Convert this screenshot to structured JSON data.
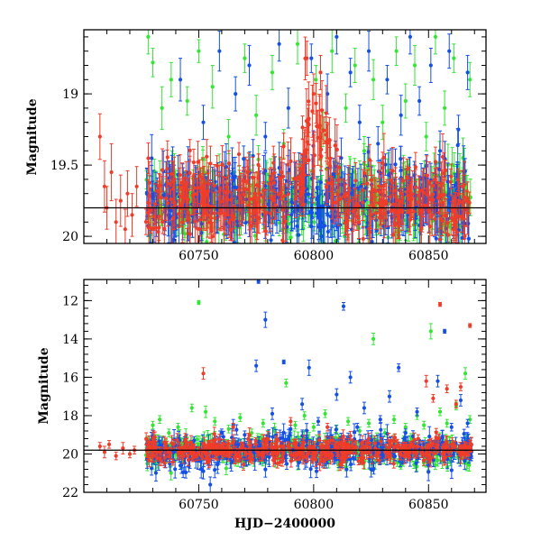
{
  "figure": {
    "background": "#ffffff",
    "series_colors": {
      "green": "#33e633",
      "blue": "#1450e6",
      "red": "#f03c28"
    }
  },
  "chart_data": [
    {
      "type": "scatter",
      "panel": "top",
      "title": "",
      "xlabel": "",
      "ylabel": "Magnitude",
      "xlim": [
        60700,
        60875
      ],
      "ylim": [
        20.05,
        18.55
      ],
      "y_inverted": true,
      "x_ticks": [
        60750,
        60800,
        60850
      ],
      "x_tick_labels": [
        "60750",
        "60800",
        "60850"
      ],
      "y_ticks": [
        19,
        19.5,
        20
      ],
      "y_tick_labels": [
        "19",
        "19.5",
        "20"
      ],
      "reference_line": {
        "y": 19.8,
        "color": "#000000"
      },
      "grid": false,
      "legend": "none",
      "series": [
        {
          "color": "green",
          "dense_segments": [
            [
              60727,
              60869,
              19.75,
              0.12
            ]
          ],
          "scatter_points": [
            [
              60728,
              18.6,
              0.12
            ],
            [
              60730,
              18.78,
              0.1
            ],
            [
              60734,
              19.1,
              0.15
            ],
            [
              60738,
              18.9,
              0.12
            ],
            [
              60745,
              19.05,
              0.1
            ],
            [
              60750,
              18.7,
              0.08
            ],
            [
              60756,
              18.95,
              0.15
            ],
            [
              60763,
              19.3,
              0.12
            ],
            [
              60770,
              18.75,
              0.1
            ],
            [
              60775,
              19.15,
              0.14
            ],
            [
              60782,
              18.85,
              0.12
            ],
            [
              60787,
              19.35,
              0.1
            ],
            [
              60793,
              18.65,
              0.14
            ],
            [
              60797,
              19.7,
              0.12
            ],
            [
              60801,
              18.9,
              0.1
            ],
            [
              60804,
              19.25,
              0.12
            ],
            [
              60808,
              18.7,
              0.15
            ],
            [
              60814,
              19.1,
              0.1
            ],
            [
              60818,
              18.8,
              0.12
            ],
            [
              60822,
              19.4,
              0.1
            ],
            [
              60826,
              18.9,
              0.14
            ],
            [
              60830,
              19.2,
              0.12
            ],
            [
              60836,
              18.7,
              0.1
            ],
            [
              60840,
              19.05,
              0.12
            ],
            [
              60844,
              18.8,
              0.14
            ],
            [
              60849,
              19.3,
              0.1
            ],
            [
              60853,
              18.6,
              0.12
            ],
            [
              60857,
              19.1,
              0.12
            ],
            [
              60861,
              18.75,
              0.1
            ],
            [
              60865,
              19.45,
              0.14
            ],
            [
              60868,
              18.9,
              0.12
            ]
          ]
        },
        {
          "color": "blue",
          "dense_segments": [
            [
              60727,
              60869,
              19.75,
              0.14
            ]
          ],
          "scatter_points": [
            [
              60742,
              18.9,
              0.15
            ],
            [
              60752,
              19.2,
              0.12
            ],
            [
              60759,
              18.7,
              0.14
            ],
            [
              60766,
              19.0,
              0.12
            ],
            [
              60772,
              18.8,
              0.14
            ],
            [
              60779,
              19.3,
              0.1
            ],
            [
              60785,
              18.65,
              0.12
            ],
            [
              60789,
              19.1,
              0.14
            ],
            [
              60795,
              19.55,
              0.12
            ],
            [
              60799,
              18.75,
              0.1
            ],
            [
              60803,
              19.9,
              0.12
            ],
            [
              60806,
              19.0,
              0.14
            ],
            [
              60810,
              18.6,
              0.12
            ],
            [
              60812,
              19.45,
              0.14
            ],
            [
              60816,
              18.85,
              0.1
            ],
            [
              60820,
              19.2,
              0.12
            ],
            [
              60824,
              18.7,
              0.14
            ],
            [
              60828,
              19.35,
              0.12
            ],
            [
              60832,
              18.9,
              0.1
            ],
            [
              60838,
              19.15,
              0.14
            ],
            [
              60842,
              18.6,
              0.12
            ],
            [
              60846,
              19.05,
              0.1
            ],
            [
              60851,
              18.8,
              0.12
            ],
            [
              60855,
              19.4,
              0.14
            ],
            [
              60859,
              18.7,
              0.12
            ],
            [
              60863,
              19.25,
              0.1
            ],
            [
              60867,
              18.85,
              0.12
            ]
          ]
        },
        {
          "color": "red",
          "dense_segments": [
            [
              60727,
              60745,
              19.76,
              0.13
            ],
            [
              60745,
              60790,
              19.72,
              0.14
            ],
            [
              60790,
              60796,
              19.55,
              0.15
            ],
            [
              60796,
              60806,
              19.35,
              0.18
            ],
            [
              60806,
              60812,
              19.6,
              0.15
            ],
            [
              60812,
              60869,
              19.78,
              0.13
            ]
          ],
          "scatter_points": [
            [
              60707,
              19.3,
              0.16
            ],
            [
              60709,
              19.65,
              0.18
            ],
            [
              60710,
              19.8,
              0.15
            ],
            [
              60712,
              19.55,
              0.2
            ],
            [
              60714,
              19.9,
              0.16
            ],
            [
              60716,
              19.75,
              0.18
            ],
            [
              60718,
              19.95,
              0.14
            ],
            [
              60719,
              19.7,
              0.16
            ],
            [
              60721,
              19.85,
              0.15
            ],
            [
              60723,
              19.65,
              0.14
            ],
            [
              60797,
              18.75,
              0.12
            ],
            [
              60800,
              19.0,
              0.14
            ],
            [
              60803,
              18.85,
              0.12
            ]
          ]
        }
      ]
    },
    {
      "type": "scatter",
      "panel": "bottom",
      "title": "",
      "xlabel": "HJD−2400000",
      "ylabel": "Magnitude",
      "xlim": [
        60700,
        60875
      ],
      "ylim": [
        22,
        10.9
      ],
      "y_inverted": true,
      "x_ticks": [
        60750,
        60800,
        60850
      ],
      "x_tick_labels": [
        "60750",
        "60800",
        "60850"
      ],
      "y_ticks": [
        12,
        14,
        16,
        18,
        20,
        22
      ],
      "y_tick_labels": [
        "12",
        "14",
        "16",
        "18",
        "20",
        "22"
      ],
      "reference_line": {
        "y": 19.8,
        "color": "#000000"
      },
      "grid": false,
      "legend": "none",
      "series": [
        {
          "color": "green",
          "dense_segments": [
            [
              60727,
              60869,
              19.8,
              0.35
            ]
          ],
          "scatter_points": [
            [
              60730,
              18.5,
              0.2
            ],
            [
              60733,
              18.2,
              0.2
            ],
            [
              60737,
              18.9,
              0.2
            ],
            [
              60741,
              18.6,
              0.2
            ],
            [
              60747,
              17.6,
              0.2
            ],
            [
              60750,
              12.1,
              0.1
            ],
            [
              60753,
              17.8,
              0.3
            ],
            [
              60757,
              18.3,
              0.2
            ],
            [
              60763,
              18.7,
              0.2
            ],
            [
              60768,
              18.1,
              0.2
            ],
            [
              60773,
              18.9,
              0.2
            ],
            [
              60778,
              18.4,
              0.2
            ],
            [
              60783,
              18.8,
              0.2
            ],
            [
              60788,
              16.3,
              0.2
            ],
            [
              60792,
              18.5,
              0.2
            ],
            [
              60796,
              18.0,
              0.2
            ],
            [
              60800,
              18.6,
              0.2
            ],
            [
              60805,
              17.9,
              0.2
            ],
            [
              60810,
              18.7,
              0.2
            ],
            [
              60815,
              18.3,
              0.2
            ],
            [
              60820,
              18.8,
              0.2
            ],
            [
              60824,
              18.4,
              0.2
            ],
            [
              60826,
              14.0,
              0.3
            ],
            [
              60831,
              18.9,
              0.2
            ],
            [
              60835,
              18.2,
              0.2
            ],
            [
              60840,
              18.6,
              0.2
            ],
            [
              60845,
              18.0,
              0.2
            ],
            [
              60848,
              18.5,
              0.2
            ],
            [
              60851,
              13.6,
              0.4
            ],
            [
              60855,
              17.8,
              0.2
            ],
            [
              60858,
              18.4,
              0.2
            ],
            [
              60862,
              17.5,
              0.2
            ],
            [
              60866,
              15.8,
              0.3
            ],
            [
              60868,
              18.2,
              0.2
            ]
          ]
        },
        {
          "color": "blue",
          "dense_segments": [
            [
              60727,
              60869,
              19.8,
              0.4
            ]
          ],
          "scatter_points": [
            [
              60735,
              20.4,
              0.2
            ],
            [
              60742,
              20.6,
              0.2
            ],
            [
              60748,
              19.3,
              0.2
            ],
            [
              60752,
              20.9,
              0.4
            ],
            [
              60755,
              21.6,
              0.4
            ],
            [
              60760,
              18.9,
              0.2
            ],
            [
              60765,
              18.5,
              0.3
            ],
            [
              60770,
              19.0,
              0.2
            ],
            [
              60775,
              15.4,
              0.3
            ],
            [
              60776,
              11.0,
              0.1
            ],
            [
              60779,
              13.0,
              0.4
            ],
            [
              60782,
              17.9,
              0.3
            ],
            [
              60787,
              15.2,
              0.1
            ],
            [
              60790,
              18.7,
              0.2
            ],
            [
              60795,
              17.4,
              0.3
            ],
            [
              60798,
              15.5,
              0.4
            ],
            [
              60802,
              18.3,
              0.2
            ],
            [
              60806,
              19.1,
              0.2
            ],
            [
              60810,
              16.9,
              0.3
            ],
            [
              60813,
              12.3,
              0.2
            ],
            [
              60816,
              16.0,
              0.3
            ],
            [
              60819,
              18.6,
              0.2
            ],
            [
              60822,
              17.6,
              0.3
            ],
            [
              60825,
              20.8,
              0.4
            ],
            [
              60829,
              18.2,
              0.2
            ],
            [
              60833,
              17.0,
              0.3
            ],
            [
              60837,
              15.5,
              0.2
            ],
            [
              60840,
              18.9,
              0.2
            ],
            [
              60845,
              17.8,
              0.2
            ],
            [
              60850,
              20.6,
              0.3
            ],
            [
              60854,
              16.2,
              0.3
            ],
            [
              60857,
              13.6,
              0.1
            ],
            [
              60860,
              18.6,
              0.2
            ],
            [
              60864,
              17.2,
              0.3
            ],
            [
              60867,
              18.4,
              0.2
            ]
          ]
        },
        {
          "color": "red",
          "dense_segments": [
            [
              60727,
              60869,
              19.8,
              0.3
            ]
          ],
          "scatter_points": [
            [
              60707,
              19.6,
              0.2
            ],
            [
              60709,
              19.9,
              0.3
            ],
            [
              60711,
              19.5,
              0.2
            ],
            [
              60714,
              20.1,
              0.2
            ],
            [
              60717,
              19.7,
              0.3
            ],
            [
              60720,
              20.0,
              0.2
            ],
            [
              60722,
              19.8,
              0.2
            ],
            [
              60752,
              15.8,
              0.3
            ],
            [
              60765,
              18.6,
              0.2
            ],
            [
              60790,
              18.3,
              0.2
            ],
            [
              60806,
              18.6,
              0.2
            ],
            [
              60849,
              16.2,
              0.3
            ],
            [
              60852,
              17.1,
              0.2
            ],
            [
              60855,
              12.2,
              0.1
            ],
            [
              60858,
              16.6,
              0.2
            ],
            [
              60862,
              17.4,
              0.2
            ],
            [
              60864,
              16.5,
              0.2
            ],
            [
              60868,
              13.3,
              0.1
            ]
          ]
        }
      ]
    }
  ]
}
